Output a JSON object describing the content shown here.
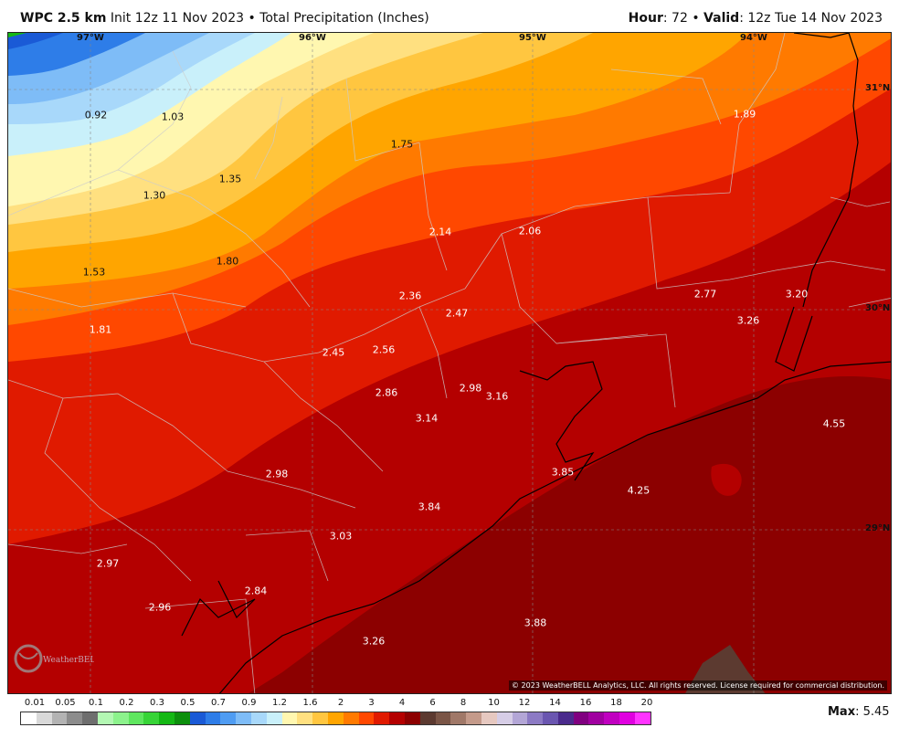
{
  "header": {
    "model": "WPC 2.5 km",
    "init_text": "Init 12z 11 Nov 2023",
    "bullet": "•",
    "product": "Total Precipitation (Inches)",
    "hour_label": "Hour",
    "hour_value": ": 72",
    "valid_label": "Valid",
    "valid_value": ": 12z Tue 14 Nov 2023"
  },
  "map": {
    "longitude_labels": [
      "97°W",
      "96°W",
      "95°W",
      "94°W"
    ],
    "latitude_labels": [
      "31°N",
      "30°N",
      "29°N"
    ],
    "values": [
      {
        "v": "0.92",
        "tone": "dark"
      },
      {
        "v": "1.03",
        "tone": "dark"
      },
      {
        "v": "1.75",
        "tone": "dark"
      },
      {
        "v": "1.89",
        "tone": "light"
      },
      {
        "v": "1.35",
        "tone": "dark"
      },
      {
        "v": "1.30",
        "tone": "dark"
      },
      {
        "v": "2.14",
        "tone": "light"
      },
      {
        "v": "2.06",
        "tone": "light"
      },
      {
        "v": "1.53",
        "tone": "dark"
      },
      {
        "v": "1.80",
        "tone": "dark"
      },
      {
        "v": "2.36",
        "tone": "light"
      },
      {
        "v": "2.77",
        "tone": "light"
      },
      {
        "v": "3.20",
        "tone": "light"
      },
      {
        "v": "2.47",
        "tone": "light"
      },
      {
        "v": "3.26",
        "tone": "light"
      },
      {
        "v": "1.81",
        "tone": "light"
      },
      {
        "v": "2.45",
        "tone": "light"
      },
      {
        "v": "2.56",
        "tone": "light"
      },
      {
        "v": "2.98",
        "tone": "light"
      },
      {
        "v": "3.16",
        "tone": "light"
      },
      {
        "v": "2.86",
        "tone": "light"
      },
      {
        "v": "3.14",
        "tone": "light"
      },
      {
        "v": "4.55",
        "tone": "light"
      },
      {
        "v": "2.98",
        "tone": "light"
      },
      {
        "v": "3.85",
        "tone": "light"
      },
      {
        "v": "4.25",
        "tone": "light"
      },
      {
        "v": "3.84",
        "tone": "light"
      },
      {
        "v": "3.03",
        "tone": "light"
      },
      {
        "v": "2.97",
        "tone": "light"
      },
      {
        "v": "2.84",
        "tone": "light"
      },
      {
        "v": "2.96",
        "tone": "light"
      },
      {
        "v": "3.88",
        "tone": "light"
      },
      {
        "v": "3.26",
        "tone": "light"
      }
    ],
    "copyright": "© 2023 WeatherBELL Analytics, LLC. All rights reserved. License required for commercial distribution.",
    "logo_text": "WeatherBELL"
  },
  "legend": {
    "ticks": [
      "0.01",
      "0.05",
      "0.1",
      "0.2",
      "0.3",
      "0.5",
      "0.7",
      "0.9",
      "1.2",
      "1.6",
      "2",
      "3",
      "4",
      "6",
      "8",
      "10",
      "12",
      "14",
      "16",
      "18",
      "20"
    ],
    "colors": [
      "#ffffff",
      "#d9d9d9",
      "#b3b3b3",
      "#8c8c8c",
      "#6e6e6e",
      "#b3f7b3",
      "#8cf28c",
      "#5fe65f",
      "#37d437",
      "#14b814",
      "#0c8f0c",
      "#1a5ad6",
      "#2e7de8",
      "#4f9cf2",
      "#7ebcf7",
      "#a8d8fa",
      "#c9f0fa",
      "#fff7b0",
      "#ffe080",
      "#ffc640",
      "#ffa500",
      "#ff7a00",
      "#ff4800",
      "#e01a00",
      "#b40000",
      "#8c0000",
      "#5c3a30",
      "#7a5546",
      "#a07868",
      "#c49a8a",
      "#e6c8c0",
      "#d6cde6",
      "#b3a6d6",
      "#8c7ac4",
      "#6a56b0",
      "#4a2a8c",
      "#800080",
      "#a000a0",
      "#c000c0",
      "#e000e0",
      "#ff33ff"
    ],
    "max_label": "Max",
    "max_value": ": 5.45"
  }
}
